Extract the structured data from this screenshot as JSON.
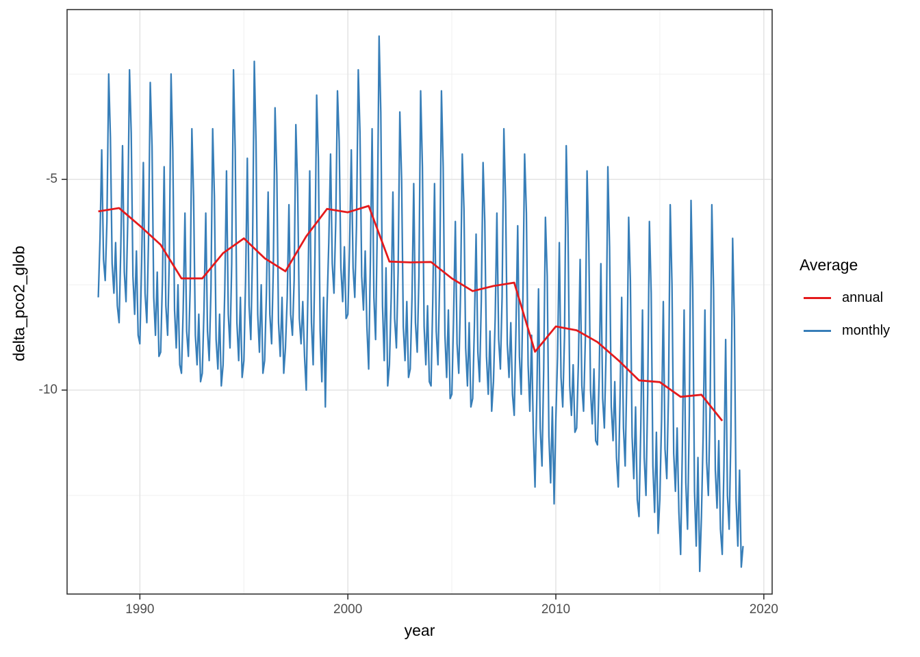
{
  "figure": {
    "background": "#ffffff",
    "panel_border_color": "#333333",
    "grid_major_color": "#e3e3e3",
    "grid_minor_color": "#efefef",
    "tick_color": "#333333",
    "tick_label_color": "#4d4d4d"
  },
  "axes": {
    "x_title": "year",
    "y_title": "delta_pco2_glob",
    "x_tick_labels": [
      "1990",
      "2000",
      "2010",
      "2020"
    ],
    "y_tick_labels": [
      "-5",
      "-10"
    ]
  },
  "legend": {
    "title": "Average",
    "items": [
      {
        "label": "annual",
        "color": "#E41A1C"
      },
      {
        "label": "monthly",
        "color": "#377EB8"
      }
    ]
  },
  "chart_data": {
    "type": "line",
    "title": "",
    "xlabel": "year",
    "ylabel": "delta_pco2_glob",
    "xlim": [
      1986.5,
      2020.4
    ],
    "ylim": [
      -14.84,
      -0.97
    ],
    "x_major_ticks": [
      1990,
      2000,
      2010,
      2020
    ],
    "x_minor_ticks": [
      1995,
      2005,
      2015
    ],
    "y_major_ticks": [
      -5,
      -10
    ],
    "y_minor_ticks": [
      -2.5,
      -7.5,
      -12.5
    ],
    "grid": "major+minor",
    "legend_position": "right",
    "legend_title": "Average",
    "series": [
      {
        "name": "annual",
        "color": "#E41A1C",
        "width": 2.8,
        "x_start": 1988,
        "x_step": 1,
        "values": [
          -5.76,
          -5.68,
          -6.1,
          -6.55,
          -7.35,
          -7.35,
          -6.75,
          -6.4,
          -6.87,
          -7.18,
          -6.35,
          -5.7,
          -5.78,
          -5.63,
          -6.95,
          -6.97,
          -6.96,
          -7.35,
          -7.65,
          -7.53,
          -7.45,
          -9.09,
          -8.49,
          -8.58,
          -8.86,
          -9.29,
          -9.77,
          -9.81,
          -10.16,
          -10.11,
          -10.73
        ]
      },
      {
        "name": "monthly",
        "color": "#377EB8",
        "width": 2.3,
        "x_start": 1988,
        "x_step": 0.0833333,
        "values": [
          -7.8,
          -6.4,
          -4.3,
          -6.9,
          -7.4,
          -6.0,
          -2.5,
          -4.0,
          -7.0,
          -7.7,
          -6.5,
          -8.0,
          -8.4,
          -6.6,
          -4.2,
          -7.2,
          -7.9,
          -6.0,
          -2.4,
          -3.9,
          -7.3,
          -8.2,
          -6.7,
          -8.7,
          -8.9,
          -7.0,
          -4.6,
          -7.7,
          -8.4,
          -6.4,
          -2.7,
          -4.2,
          -7.8,
          -8.7,
          -7.2,
          -9.2,
          -9.1,
          -7.4,
          -4.7,
          -8.0,
          -8.7,
          -6.8,
          -2.5,
          -4.3,
          -8.1,
          -9.0,
          -7.5,
          -9.4,
          -9.6,
          -8.1,
          -5.8,
          -8.6,
          -9.2,
          -7.6,
          -3.8,
          -5.4,
          -8.7,
          -9.4,
          -8.2,
          -9.8,
          -9.6,
          -8.1,
          -5.8,
          -8.6,
          -9.3,
          -7.6,
          -3.8,
          -5.4,
          -8.8,
          -9.5,
          -8.2,
          -9.9,
          -9.4,
          -7.6,
          -4.8,
          -8.2,
          -9.0,
          -7.0,
          -2.4,
          -4.3,
          -8.4,
          -9.3,
          -7.8,
          -9.7,
          -9.3,
          -7.4,
          -4.5,
          -8.0,
          -8.8,
          -6.7,
          -2.2,
          -4.1,
          -8.2,
          -9.1,
          -7.5,
          -9.6,
          -9.3,
          -7.7,
          -5.3,
          -8.2,
          -8.9,
          -7.1,
          -3.3,
          -4.9,
          -8.4,
          -9.2,
          -7.8,
          -9.6,
          -9.0,
          -7.8,
          -5.6,
          -8.2,
          -8.7,
          -7.4,
          -3.7,
          -5.2,
          -8.3,
          -8.9,
          -7.9,
          -9.2,
          -10.0,
          -7.6,
          -4.8,
          -8.4,
          -9.4,
          -6.8,
          -3.0,
          -4.5,
          -8.6,
          -9.8,
          -7.8,
          -10.4,
          -8.0,
          -6.5,
          -4.4,
          -7.0,
          -7.7,
          -6.0,
          -2.9,
          -4.1,
          -7.1,
          -7.9,
          -6.6,
          -8.3,
          -8.2,
          -6.6,
          -4.3,
          -7.1,
          -7.8,
          -6.1,
          -2.4,
          -3.9,
          -7.3,
          -8.1,
          -6.7,
          -8.5,
          -9.5,
          -6.9,
          -3.8,
          -7.8,
          -8.8,
          -6.1,
          -1.6,
          -3.4,
          -8.0,
          -9.3,
          -7.1,
          -9.9,
          -9.4,
          -7.8,
          -5.3,
          -8.3,
          -9.0,
          -7.2,
          -3.4,
          -5.0,
          -8.5,
          -9.3,
          -7.9,
          -9.7,
          -9.5,
          -7.8,
          -5.1,
          -8.4,
          -9.1,
          -7.3,
          -2.9,
          -4.7,
          -8.5,
          -9.4,
          -8.0,
          -9.8,
          -9.9,
          -7.9,
          -5.1,
          -8.6,
          -9.4,
          -7.3,
          -2.9,
          -4.7,
          -8.7,
          -9.7,
          -8.1,
          -10.2,
          -10.1,
          -8.3,
          -6.0,
          -8.9,
          -9.6,
          -7.7,
          -4.4,
          -5.7,
          -9.0,
          -9.9,
          -8.4,
          -10.4,
          -10.2,
          -8.5,
          -6.3,
          -9.1,
          -9.8,
          -7.9,
          -4.6,
          -6.0,
          -9.2,
          -10.1,
          -8.6,
          -10.5,
          -9.8,
          -8.3,
          -5.8,
          -8.8,
          -9.5,
          -7.8,
          -3.8,
          -5.5,
          -8.9,
          -9.7,
          -8.4,
          -10.1,
          -10.6,
          -8.5,
          -6.1,
          -9.2,
          -10.1,
          -7.8,
          -4.4,
          -5.8,
          -9.4,
          -10.5,
          -8.7,
          -11.0,
          -12.3,
          -10.2,
          -7.6,
          -10.9,
          -11.8,
          -9.5,
          -5.9,
          -7.3,
          -11.1,
          -12.2,
          -10.4,
          -12.7,
          -10.7,
          -9.2,
          -6.5,
          -9.7,
          -10.4,
          -8.7,
          -4.2,
          -6.1,
          -9.9,
          -10.6,
          -9.4,
          -11.0,
          -10.9,
          -9.4,
          -6.9,
          -9.9,
          -10.5,
          -8.8,
          -4.8,
          -6.5,
          -10.0,
          -10.8,
          -9.5,
          -11.2,
          -11.3,
          -9.7,
          -7.0,
          -10.2,
          -10.9,
          -9.1,
          -4.7,
          -6.6,
          -10.4,
          -11.2,
          -9.8,
          -11.6,
          -12.3,
          -10.3,
          -7.8,
          -10.9,
          -11.8,
          -9.6,
          -5.9,
          -7.4,
          -11.1,
          -12.1,
          -10.4,
          -12.6,
          -13.0,
          -10.9,
          -8.1,
          -11.6,
          -12.5,
          -10.1,
          -6.0,
          -7.7,
          -11.8,
          -12.9,
          -11.0,
          -13.4,
          -12.6,
          -10.7,
          -7.9,
          -11.4,
          -12.1,
          -10.1,
          -5.6,
          -7.5,
          -11.5,
          -12.4,
          -10.9,
          -12.9,
          -13.9,
          -11.4,
          -8.1,
          -12.2,
          -13.3,
          -10.6,
          -5.5,
          -7.6,
          -12.4,
          -13.7,
          -11.6,
          -14.3,
          -13.0,
          -11.1,
          -8.1,
          -11.7,
          -12.5,
          -10.4,
          -5.6,
          -7.6,
          -11.9,
          -12.8,
          -11.2,
          -13.3,
          -13.9,
          -11.8,
          -8.8,
          -12.5,
          -13.3,
          -11.1,
          -6.4,
          -8.3,
          -12.6,
          -13.7,
          -11.9,
          -14.2,
          -13.7
        ]
      }
    ]
  }
}
